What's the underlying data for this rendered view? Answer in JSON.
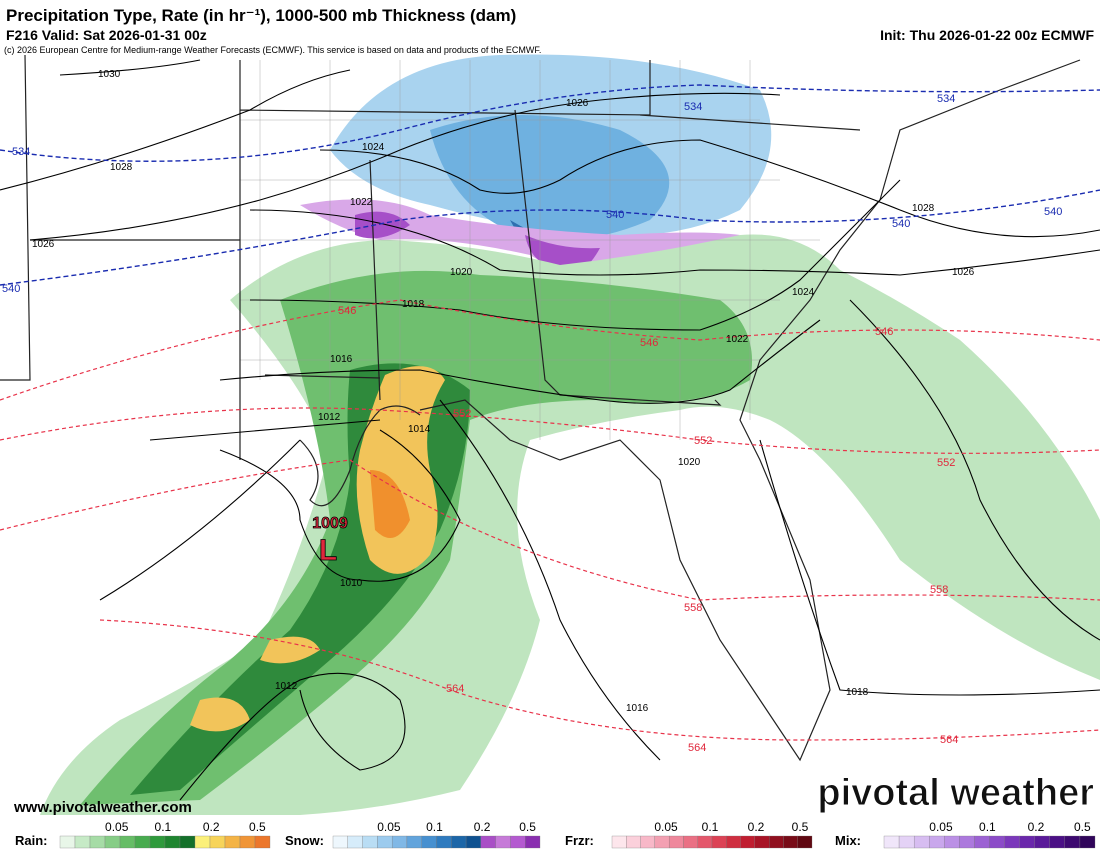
{
  "header": {
    "title": "Precipitation Type, Rate (in hr⁻¹), 1000-500 mb Thickness (dam)",
    "valid": "F216 Valid: Sat 2026-01-31 00z",
    "init": "Init: Thu 2026-01-22 00z ECMWF",
    "credit": "(c) 2026 European Centre for Medium-range Weather Forecasts (ECMWF). This service is based on data and products of the ECMWF."
  },
  "map": {
    "isobar_labels": [
      "1030",
      "1028",
      "1026",
      "1026",
      "1024",
      "1022",
      "1020",
      "1018",
      "1016",
      "1012",
      "1014",
      "1010",
      "1012",
      "1016",
      "1018",
      "1020",
      "1022",
      "1024",
      "1026",
      "1028"
    ],
    "thickness_labels": [
      "534",
      "534",
      "534",
      "540",
      "540",
      "540",
      "540",
      "546",
      "546",
      "546",
      "552",
      "552",
      "552",
      "558",
      "558",
      "564",
      "564",
      "564"
    ],
    "low_pressure": "1009",
    "low_symbol": "L"
  },
  "watermark": {
    "url": "www.pivotalweather.com",
    "brand": "pivotal weather"
  },
  "legend": [
    {
      "name": "Rain:",
      "ticks": [
        "0.05",
        "0.1",
        "0.2",
        "0.5"
      ]
    },
    {
      "name": "Snow:",
      "ticks": [
        "0.05",
        "0.1",
        "0.2",
        "0.5"
      ]
    },
    {
      "name": "Frzr:",
      "ticks": [
        "0.05",
        "0.1",
        "0.2",
        "0.5"
      ]
    },
    {
      "name": "Mix:",
      "ticks": [
        "0.05",
        "0.1",
        "0.2",
        "0.5"
      ]
    }
  ]
}
